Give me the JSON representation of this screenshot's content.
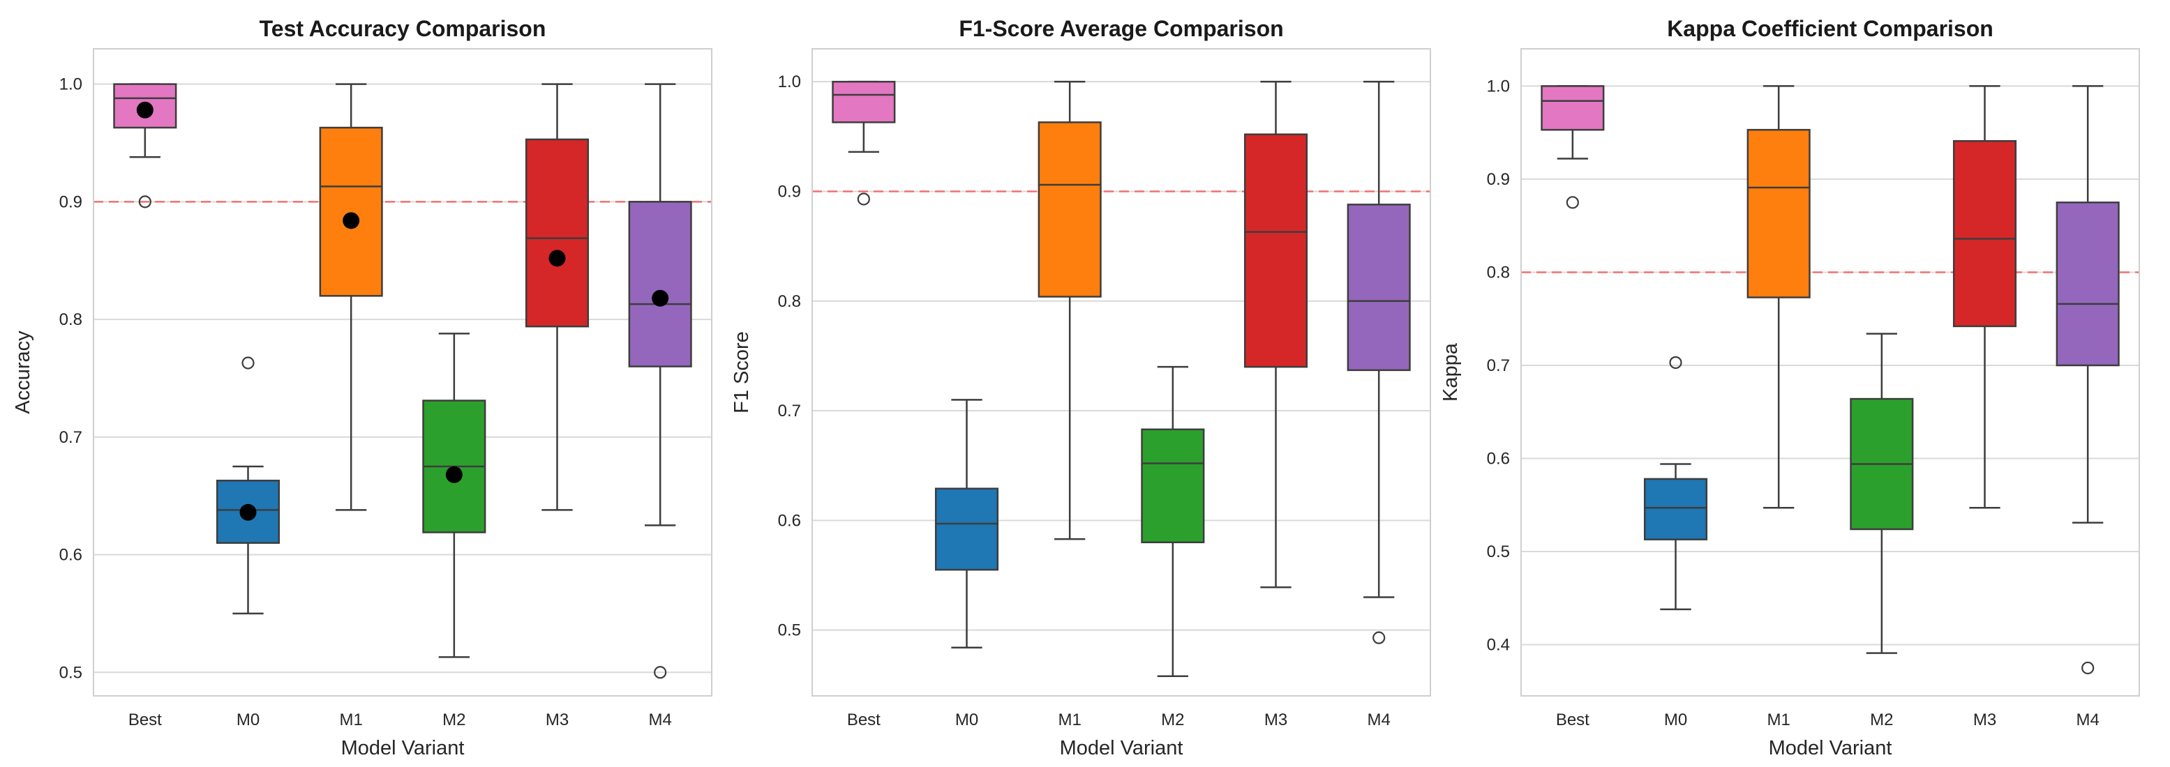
{
  "chart_data": [
    {
      "type": "box",
      "title": "Test Accuracy Comparison",
      "xlabel": "Model Variant",
      "ylabel": "Accuracy",
      "categories": [
        "Best",
        "M0",
        "M1",
        "M2",
        "M3",
        "M4"
      ],
      "ylim": [
        0.48,
        1.03
      ],
      "yticks": [
        0.5,
        0.6,
        0.7,
        0.8,
        0.9,
        1.0
      ],
      "ytick_labels": [
        "0.5",
        "0.6",
        "0.7",
        "0.8",
        "0.9",
        "1.0"
      ],
      "reference_line": 0.9,
      "show_means": true,
      "grid": true,
      "boxes": [
        {
          "category": "Best",
          "color": "#e377c2",
          "whisker_low": 0.938,
          "q1": 0.963,
          "median": 0.988,
          "q3": 1.0,
          "whisker_high": 1.0,
          "mean": 0.978,
          "outliers": [
            0.9
          ]
        },
        {
          "category": "M0",
          "color": "#1f77b4",
          "whisker_low": 0.55,
          "q1": 0.61,
          "median": 0.638,
          "q3": 0.663,
          "whisker_high": 0.675,
          "mean": 0.636,
          "outliers": [
            0.763
          ]
        },
        {
          "category": "M1",
          "color": "#ff7f0e",
          "whisker_low": 0.638,
          "q1": 0.82,
          "median": 0.913,
          "q3": 0.963,
          "whisker_high": 1.0,
          "mean": 0.884,
          "outliers": []
        },
        {
          "category": "M2",
          "color": "#2ca02c",
          "whisker_low": 0.513,
          "q1": 0.619,
          "median": 0.675,
          "q3": 0.731,
          "whisker_high": 0.788,
          "mean": 0.668,
          "outliers": []
        },
        {
          "category": "M3",
          "color": "#d62728",
          "whisker_low": 0.638,
          "q1": 0.794,
          "median": 0.869,
          "q3": 0.953,
          "whisker_high": 1.0,
          "mean": 0.852,
          "outliers": []
        },
        {
          "category": "M4",
          "color": "#9467bd",
          "whisker_low": 0.625,
          "q1": 0.76,
          "median": 0.813,
          "q3": 0.9,
          "whisker_high": 1.0,
          "mean": 0.818,
          "outliers": [
            0.5
          ]
        }
      ]
    },
    {
      "type": "box",
      "title": "F1-Score Average Comparison",
      "xlabel": "Model Variant",
      "ylabel": "F1 Score",
      "categories": [
        "Best",
        "M0",
        "M1",
        "M2",
        "M3",
        "M4"
      ],
      "ylim": [
        0.44,
        1.03
      ],
      "yticks": [
        0.5,
        0.6,
        0.7,
        0.8,
        0.9,
        1.0
      ],
      "ytick_labels": [
        "0.5",
        "0.6",
        "0.7",
        "0.8",
        "0.9",
        "1.0"
      ],
      "reference_line": 0.9,
      "show_means": false,
      "grid": true,
      "boxes": [
        {
          "category": "Best",
          "color": "#e377c2",
          "whisker_low": 0.936,
          "q1": 0.963,
          "median": 0.988,
          "q3": 1.0,
          "whisker_high": 1.0,
          "outliers": [
            0.893
          ]
        },
        {
          "category": "M0",
          "color": "#1f77b4",
          "whisker_low": 0.484,
          "q1": 0.555,
          "median": 0.597,
          "q3": 0.629,
          "whisker_high": 0.71,
          "outliers": []
        },
        {
          "category": "M1",
          "color": "#ff7f0e",
          "whisker_low": 0.583,
          "q1": 0.804,
          "median": 0.906,
          "q3": 0.963,
          "whisker_high": 1.0,
          "outliers": []
        },
        {
          "category": "M2",
          "color": "#2ca02c",
          "whisker_low": 0.458,
          "q1": 0.58,
          "median": 0.652,
          "q3": 0.683,
          "whisker_high": 0.74,
          "outliers": []
        },
        {
          "category": "M3",
          "color": "#d62728",
          "whisker_low": 0.539,
          "q1": 0.74,
          "median": 0.863,
          "q3": 0.952,
          "whisker_high": 1.0,
          "outliers": []
        },
        {
          "category": "M4",
          "color": "#9467bd",
          "whisker_low": 0.53,
          "q1": 0.737,
          "median": 0.8,
          "q3": 0.888,
          "whisker_high": 1.0,
          "outliers": [
            0.493
          ]
        }
      ]
    },
    {
      "type": "box",
      "title": "Kappa Coefficient Comparison",
      "xlabel": "Model Variant",
      "ylabel": "Kappa",
      "categories": [
        "Best",
        "M0",
        "M1",
        "M2",
        "M3",
        "M4"
      ],
      "ylim": [
        0.345,
        1.04
      ],
      "yticks": [
        0.4,
        0.5,
        0.6,
        0.7,
        0.8,
        0.9,
        1.0
      ],
      "ytick_labels": [
        "0.4",
        "0.5",
        "0.6",
        "0.7",
        "0.8",
        "0.9",
        "1.0"
      ],
      "reference_line": 0.8,
      "show_means": false,
      "grid": true,
      "boxes": [
        {
          "category": "Best",
          "color": "#e377c2",
          "whisker_low": 0.922,
          "q1": 0.953,
          "median": 0.984,
          "q3": 1.0,
          "whisker_high": 1.0,
          "outliers": [
            0.875
          ]
        },
        {
          "category": "M0",
          "color": "#1f77b4",
          "whisker_low": 0.438,
          "q1": 0.513,
          "median": 0.547,
          "q3": 0.578,
          "whisker_high": 0.594,
          "outliers": [
            0.703
          ]
        },
        {
          "category": "M1",
          "color": "#ff7f0e",
          "whisker_low": 0.547,
          "q1": 0.773,
          "median": 0.891,
          "q3": 0.953,
          "whisker_high": 1.0,
          "outliers": []
        },
        {
          "category": "M2",
          "color": "#2ca02c",
          "whisker_low": 0.391,
          "q1": 0.524,
          "median": 0.594,
          "q3": 0.664,
          "whisker_high": 0.734,
          "outliers": []
        },
        {
          "category": "M3",
          "color": "#d62728",
          "whisker_low": 0.547,
          "q1": 0.742,
          "median": 0.836,
          "q3": 0.941,
          "whisker_high": 1.0,
          "outliers": []
        },
        {
          "category": "M4",
          "color": "#9467bd",
          "whisker_low": 0.531,
          "q1": 0.7,
          "median": 0.766,
          "q3": 0.875,
          "whisker_high": 1.0,
          "outliers": [
            0.375
          ]
        }
      ]
    }
  ]
}
